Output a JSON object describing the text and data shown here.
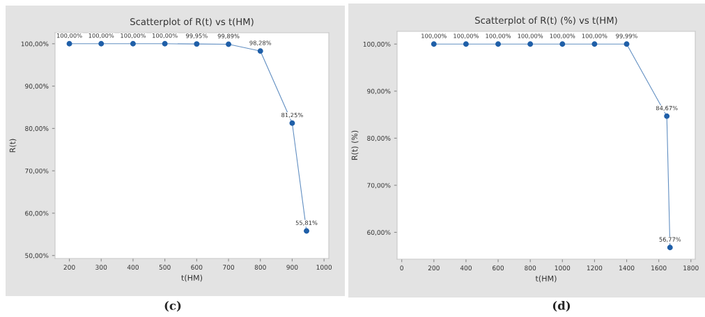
{
  "chart_data": [
    {
      "type": "line",
      "title": "Scatterplot of R(t) vs t(HM)",
      "xlabel": "t(HM)",
      "ylabel": "R(t)",
      "marker": "circle",
      "grid": false,
      "legend": false,
      "x": [
        200,
        300,
        400,
        500,
        600,
        700,
        800,
        900,
        945
      ],
      "series": [
        {
          "color": "#1f5fa8",
          "values": [
            100,
            100,
            100,
            100,
            99.95,
            99.89,
            98.28,
            81.25,
            55.81
          ],
          "value_labels": [
            "100,00%",
            "100,00%",
            "100,00%",
            "100,00%",
            "99,95%",
            "99,89%",
            "98,28%",
            "81,25%",
            "55,81%"
          ]
        }
      ],
      "xlim": [
        155,
        1015
      ],
      "xticks": [
        200,
        300,
        400,
        500,
        600,
        700,
        800,
        900,
        1000
      ],
      "ylim": [
        49.3,
        102.6
      ],
      "yticks": [
        {
          "value": 50,
          "label": "50,00%"
        },
        {
          "value": 60,
          "label": "60,00%"
        },
        {
          "value": 70,
          "label": "70,00%"
        },
        {
          "value": 80,
          "label": "80,00%"
        },
        {
          "value": 90,
          "label": "90,00%"
        },
        {
          "value": 100,
          "label": "100,00%"
        }
      ],
      "annotations": [
        "(c)"
      ]
    },
    {
      "type": "line",
      "title": "Scatterplot of R(t) (%) vs t(HM)",
      "xlabel": "t(HM)",
      "ylabel": "R(t) (%)",
      "marker": "circle",
      "grid": false,
      "legend": false,
      "x": [
        200,
        400,
        600,
        800,
        1000,
        1200,
        1400,
        1650,
        1670
      ],
      "series": [
        {
          "color": "#1f5fa8",
          "values": [
            100,
            100,
            100,
            100,
            100,
            100,
            99.99,
            84.67,
            56.77
          ],
          "value_labels": [
            "100,00%",
            "100,00%",
            "100,00%",
            "100,00%",
            "100,00%",
            "100,00%",
            "99,99%",
            "84,67%",
            "56,77%"
          ]
        }
      ],
      "xlim": [
        -29,
        1827
      ],
      "xticks": [
        0,
        200,
        400,
        600,
        800,
        1000,
        1200,
        1400,
        1600,
        1800
      ],
      "ylim": [
        54.3,
        102.7
      ],
      "yticks": [
        {
          "value": 60,
          "label": "60,00%"
        },
        {
          "value": 70,
          "label": "70,00%"
        },
        {
          "value": 80,
          "label": "80,00%"
        },
        {
          "value": 90,
          "label": "90,00%"
        },
        {
          "value": 100,
          "label": "100,00%"
        }
      ],
      "annotations": [
        "(d)"
      ]
    }
  ]
}
